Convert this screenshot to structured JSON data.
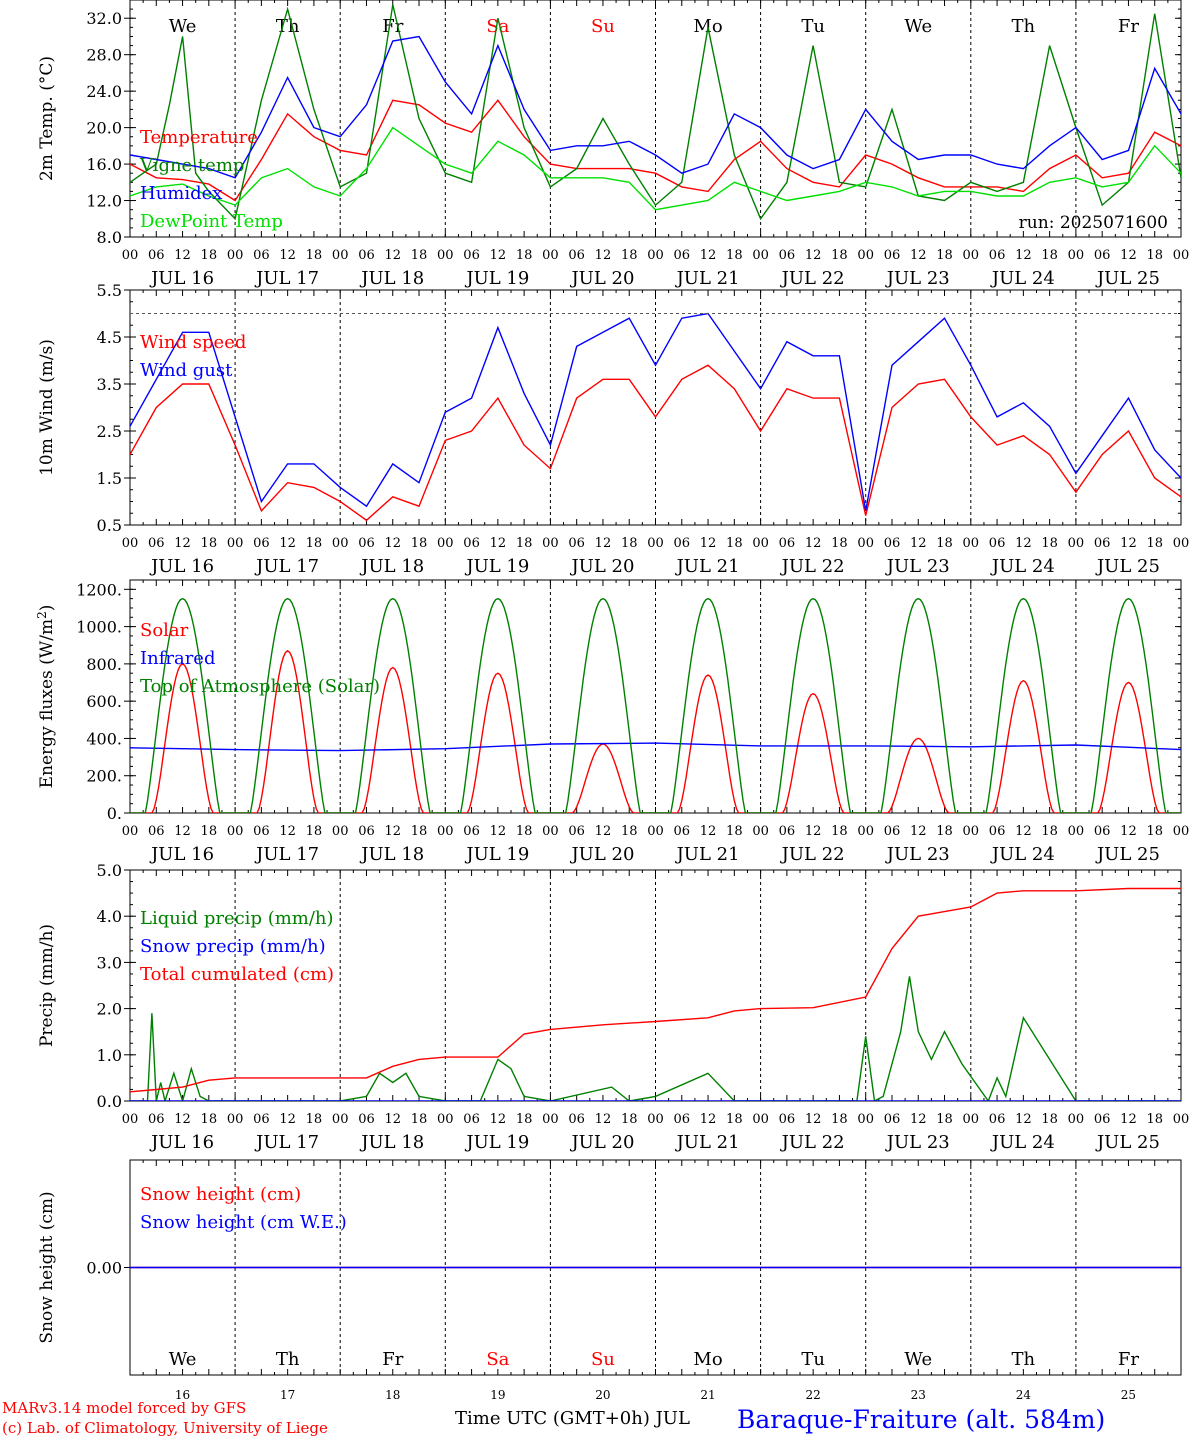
{
  "charts": {
    "temperature": {
      "ylabel_pre": "2m Temp. (",
      "ylabel_unit": "°C",
      "ylabel_post": ")",
      "yticks": [
        "8.0",
        "12.0",
        "16.0",
        "20.0",
        "24.0",
        "28.0",
        "32.0"
      ],
      "run_label": "run: 2025071600",
      "legend": [
        "Temperature",
        "Vigne temp",
        "Humidex",
        "DewPoint Temp"
      ]
    },
    "wind": {
      "ylabel": "10m Wind (m/s)",
      "yticks": [
        "0.5",
        "1.5",
        "2.5",
        "3.5",
        "4.5",
        "5.5"
      ],
      "legend": [
        "Wind speed",
        "Wind gust"
      ]
    },
    "energy": {
      "ylabel_pre": "Energy fluxes (W/m",
      "ylabel_sup": "2",
      "ylabel_post": ")",
      "yticks": [
        "0.",
        "200.",
        "400.",
        "600.",
        "800.",
        "1000.",
        "1200."
      ],
      "legend": [
        "Solar",
        "Infrared",
        "Top of Atmosphere (Solar)"
      ]
    },
    "precip": {
      "ylabel": "Precip (mm/h)",
      "yticks": [
        "0.0",
        "1.0",
        "2.0",
        "3.0",
        "4.0",
        "5.0"
      ],
      "legend": [
        "Liquid precip (mm/h)",
        "Snow precip (mm/h)",
        "Total cumulated (cm)"
      ]
    },
    "snow": {
      "ylabel": "Snow height (cm)",
      "yticks": [
        "0.00"
      ],
      "legend": [
        "Snow height (cm)",
        "Snow height (cm W.E.)"
      ]
    }
  },
  "days": [
    "We",
    "Th",
    "Fr",
    "Sa",
    "Su",
    "Mo",
    "Tu",
    "We",
    "Th",
    "Fr"
  ],
  "weekend_color": "#ff0000",
  "weekday_color": "#000000",
  "date_labels": [
    "JUL 16",
    "JUL 17",
    "JUL 18",
    "JUL 19",
    "JUL 20",
    "JUL 21",
    "JUL 22",
    "JUL 23",
    "JUL 24",
    "JUL 25"
  ],
  "day_numbers": [
    "16",
    "17",
    "18",
    "19",
    "20",
    "21",
    "22",
    "23",
    "24",
    "25"
  ],
  "hour_labels": [
    "00",
    "06",
    "12",
    "18"
  ],
  "hour_end": "00",
  "footer": {
    "model": "MARv3.14 model forced by GFS",
    "credit": "(c) Lab. of Climatology, University of Liege",
    "time_label": "Time UTC (GMT+0h) JUL",
    "station": "Baraque-Fraiture (alt. 584m)"
  },
  "colors": {
    "red": "#ff0000",
    "green": "#008000",
    "blue": "#0000ff",
    "lightgreen": "#00e000"
  },
  "chart_data": [
    {
      "type": "line",
      "title": "",
      "ylabel": "2m Temp. (°C)",
      "ylim": [
        8,
        34
      ],
      "x_unit": "hours since JUL 16 00 UTC",
      "xlim": [
        0,
        240
      ],
      "series": [
        {
          "name": "Temperature",
          "color": "#ff0000",
          "x": [
            0,
            6,
            12,
            18,
            24,
            30,
            36,
            42,
            48,
            54,
            60,
            66,
            72,
            78,
            84,
            90,
            96,
            102,
            108,
            114,
            120,
            126,
            132,
            138,
            144,
            150,
            156,
            162,
            168,
            174,
            180,
            186,
            192,
            198,
            204,
            210,
            216,
            222,
            228,
            234,
            240
          ],
          "y": [
            16.0,
            14.5,
            14.3,
            13.8,
            12.0,
            16.5,
            21.5,
            19.0,
            17.5,
            17.0,
            23.0,
            22.5,
            20.5,
            19.5,
            23.0,
            19.0,
            16.0,
            15.5,
            15.5,
            15.5,
            15.0,
            13.5,
            13.0,
            16.5,
            18.5,
            15.5,
            14.0,
            13.5,
            17.0,
            16.0,
            14.5,
            13.5,
            13.5,
            13.5,
            13.0,
            15.5,
            17.0,
            14.5,
            15.0,
            19.5,
            18.0
          ]
        },
        {
          "name": "Vigne temp",
          "color": "#008000",
          "x": [
            0,
            6,
            9,
            12,
            15,
            18,
            24,
            30,
            36,
            42,
            48,
            54,
            60,
            66,
            72,
            78,
            84,
            90,
            96,
            102,
            108,
            114,
            120,
            126,
            132,
            138,
            144,
            150,
            156,
            162,
            168,
            174,
            180,
            186,
            192,
            198,
            204,
            210,
            216,
            222,
            228,
            234,
            240
          ],
          "y": [
            14.0,
            16.0,
            22.5,
            30.0,
            15.0,
            13.0,
            10.0,
            23.0,
            33.0,
            22.0,
            13.5,
            15.0,
            33.5,
            21.0,
            15.0,
            14.0,
            32.0,
            20.0,
            13.5,
            15.5,
            21.0,
            16.0,
            11.5,
            14.0,
            31.0,
            17.0,
            10.0,
            14.0,
            29.0,
            14.0,
            13.5,
            22.0,
            12.5,
            12.0,
            14.0,
            13.0,
            14.0,
            29.0,
            20.0,
            11.5,
            14.0,
            32.5,
            14.5
          ]
        },
        {
          "name": "Humidex",
          "color": "#0000ff",
          "x": [
            0,
            6,
            12,
            18,
            24,
            30,
            36,
            42,
            48,
            54,
            60,
            66,
            72,
            78,
            84,
            90,
            96,
            102,
            108,
            114,
            120,
            126,
            132,
            138,
            144,
            150,
            156,
            162,
            168,
            174,
            180,
            186,
            192,
            198,
            204,
            210,
            216,
            222,
            228,
            234,
            240
          ],
          "y": [
            17.0,
            16.5,
            16.0,
            15.5,
            14.5,
            19.5,
            25.5,
            20.0,
            19.0,
            22.5,
            29.5,
            30.0,
            25.0,
            21.5,
            29.0,
            22.0,
            17.5,
            18.0,
            18.0,
            18.5,
            17.0,
            15.0,
            16.0,
            21.5,
            20.0,
            17.0,
            15.5,
            16.5,
            22.0,
            18.5,
            16.5,
            17.0,
            17.0,
            16.0,
            15.5,
            18.0,
            20.0,
            16.5,
            17.5,
            26.5,
            21.5
          ]
        },
        {
          "name": "DewPoint Temp",
          "color": "#00e000",
          "x": [
            0,
            6,
            12,
            18,
            24,
            30,
            36,
            42,
            48,
            54,
            60,
            66,
            72,
            78,
            84,
            90,
            96,
            102,
            108,
            114,
            120,
            126,
            132,
            138,
            144,
            150,
            156,
            162,
            168,
            174,
            180,
            186,
            192,
            198,
            204,
            210,
            216,
            222,
            228,
            234,
            240
          ],
          "y": [
            12.5,
            13.5,
            13.8,
            12.5,
            11.5,
            14.5,
            15.5,
            13.5,
            12.5,
            15.5,
            20.0,
            18.0,
            16.0,
            15.0,
            18.5,
            17.0,
            14.5,
            14.5,
            14.5,
            14.0,
            11.0,
            11.5,
            12.0,
            14.0,
            13.0,
            12.0,
            12.5,
            13.0,
            14.0,
            13.5,
            12.5,
            13.0,
            13.0,
            12.5,
            12.5,
            14.0,
            14.5,
            13.5,
            14.0,
            18.0,
            15.0
          ]
        }
      ]
    },
    {
      "type": "line",
      "title": "",
      "ylabel": "10m Wind (m/s)",
      "ylim": [
        0.5,
        5.5
      ],
      "xlim": [
        0,
        240
      ],
      "series": [
        {
          "name": "Wind speed",
          "color": "#ff0000",
          "x": [
            0,
            6,
            12,
            18,
            24,
            30,
            36,
            42,
            48,
            54,
            60,
            66,
            72,
            78,
            84,
            90,
            96,
            102,
            108,
            114,
            120,
            126,
            132,
            138,
            144,
            150,
            156,
            162,
            168,
            174,
            180,
            186,
            192,
            198,
            204,
            210,
            216,
            222,
            228,
            234,
            240
          ],
          "y": [
            2.0,
            3.0,
            3.5,
            3.5,
            2.2,
            0.8,
            1.4,
            1.3,
            1.0,
            0.6,
            1.1,
            0.9,
            2.3,
            2.5,
            3.2,
            2.2,
            1.7,
            3.2,
            3.6,
            3.6,
            2.8,
            3.6,
            3.9,
            3.4,
            2.5,
            3.4,
            3.2,
            3.2,
            0.7,
            3.0,
            3.5,
            3.6,
            2.8,
            2.2,
            2.4,
            2.0,
            1.2,
            2.0,
            2.5,
            1.5,
            1.1
          ]
        },
        {
          "name": "Wind gust",
          "color": "#0000ff",
          "x": [
            0,
            6,
            12,
            18,
            24,
            30,
            36,
            42,
            48,
            54,
            60,
            66,
            72,
            78,
            84,
            90,
            96,
            102,
            108,
            114,
            120,
            126,
            132,
            138,
            144,
            150,
            156,
            162,
            168,
            174,
            180,
            186,
            192,
            198,
            204,
            210,
            216,
            222,
            228,
            234,
            240
          ],
          "y": [
            2.6,
            3.6,
            4.6,
            4.6,
            2.8,
            1.0,
            1.8,
            1.8,
            1.3,
            0.9,
            1.8,
            1.4,
            2.9,
            3.2,
            4.7,
            3.3,
            2.2,
            4.3,
            4.6,
            4.9,
            3.9,
            4.9,
            5.0,
            4.2,
            3.4,
            4.4,
            4.1,
            4.1,
            0.8,
            3.9,
            4.4,
            4.9,
            3.9,
            2.8,
            3.1,
            2.6,
            1.6,
            2.4,
            3.2,
            2.1,
            1.5
          ]
        }
      ]
    },
    {
      "type": "line",
      "title": "",
      "ylabel": "Energy fluxes (W/m²)",
      "ylim": [
        0,
        1250
      ],
      "xlim": [
        0,
        240
      ],
      "series": [
        {
          "name": "Solar",
          "color": "#ff0000",
          "peaks": [
            800,
            870,
            780,
            750,
            370,
            740,
            640,
            400,
            710,
            700
          ]
        },
        {
          "name": "Infrared",
          "color": "#0000ff",
          "x": [
            0,
            24,
            48,
            72,
            96,
            120,
            144,
            168,
            192,
            216,
            240
          ],
          "y": [
            350,
            340,
            335,
            345,
            370,
            375,
            360,
            360,
            355,
            365,
            340
          ]
        },
        {
          "name": "Top of Atmosphere (Solar)",
          "color": "#008000",
          "peaks": [
            1150,
            1150,
            1150,
            1150,
            1150,
            1150,
            1150,
            1150,
            1150,
            1150
          ]
        }
      ]
    },
    {
      "type": "line",
      "title": "",
      "ylabel": "Precip (mm/h)",
      "ylim": [
        0,
        5
      ],
      "xlim": [
        0,
        240
      ],
      "series": [
        {
          "name": "Liquid precip (mm/h)",
          "color": "#008000",
          "x": [
            0,
            4,
            5,
            6,
            7,
            8,
            10,
            12,
            14,
            16,
            18,
            24,
            48,
            54,
            57,
            60,
            63,
            66,
            72,
            80,
            84,
            87,
            90,
            96,
            110,
            114,
            120,
            132,
            138,
            144,
            158,
            166,
            168,
            170,
            172,
            176,
            178,
            180,
            183,
            186,
            190,
            196,
            198,
            200,
            204,
            216,
            240
          ],
          "y": [
            0,
            0,
            1.9,
            0,
            0.4,
            0,
            0.6,
            0,
            0.7,
            0.1,
            0,
            0,
            0,
            0.1,
            0.6,
            0.4,
            0.6,
            0.1,
            0,
            0,
            0.9,
            0.7,
            0.1,
            0,
            0.3,
            0,
            0.1,
            0.6,
            0,
            0,
            0,
            0,
            1.4,
            0,
            0.1,
            1.5,
            2.7,
            1.5,
            0.9,
            1.5,
            0.8,
            0,
            0.5,
            0.1,
            1.8,
            0,
            0
          ]
        },
        {
          "name": "Snow precip (mm/h)",
          "color": "#0000ff",
          "x": [
            0,
            240
          ],
          "y": [
            0,
            0
          ]
        },
        {
          "name": "Total cumulated (cm)",
          "color": "#ff0000",
          "x": [
            0,
            6,
            12,
            18,
            24,
            48,
            54,
            60,
            66,
            72,
            84,
            90,
            96,
            108,
            120,
            132,
            138,
            144,
            156,
            168,
            174,
            180,
            186,
            192,
            198,
            204,
            216,
            228,
            240
          ],
          "y": [
            0.2,
            0.25,
            0.3,
            0.45,
            0.5,
            0.5,
            0.5,
            0.75,
            0.9,
            0.95,
            0.95,
            1.45,
            1.55,
            1.65,
            1.72,
            1.8,
            1.95,
            2.0,
            2.02,
            2.25,
            3.3,
            4.0,
            4.1,
            4.2,
            4.5,
            4.55,
            4.55,
            4.6,
            4.6
          ]
        }
      ]
    },
    {
      "type": "line",
      "title": "",
      "ylabel": "Snow height (cm)",
      "ylim": [
        -1,
        1
      ],
      "xlim": [
        0,
        240
      ],
      "series": [
        {
          "name": "Snow height (cm)",
          "color": "#ff0000",
          "x": [
            0,
            240
          ],
          "y": [
            0,
            0
          ]
        },
        {
          "name": "Snow height (cm W.E.)",
          "color": "#0000ff",
          "x": [
            0,
            240
          ],
          "y": [
            0,
            0
          ]
        }
      ]
    }
  ]
}
